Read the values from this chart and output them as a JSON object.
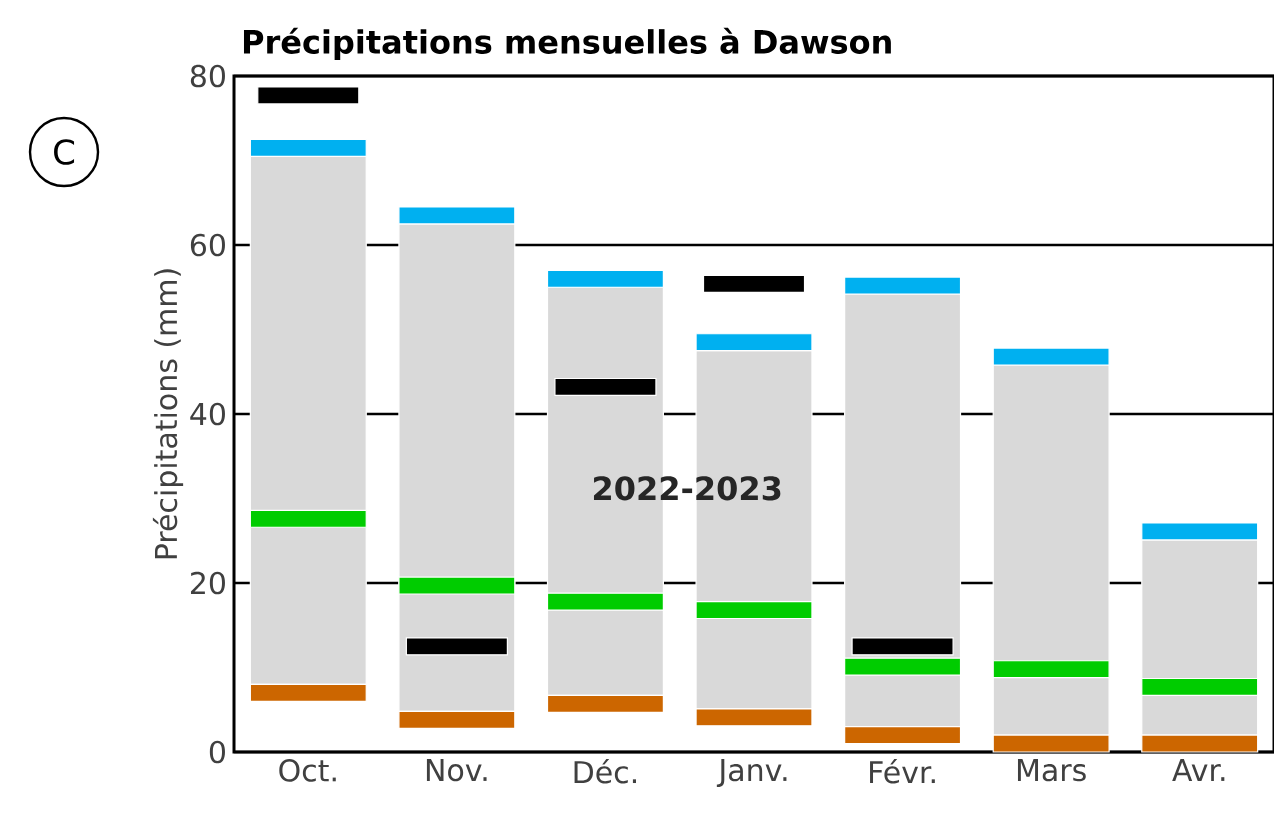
{
  "chart_data": {
    "type": "bar",
    "title": "Précipitations mensuelles à Dawson",
    "ylabel": "Précipitations (mm)",
    "categories": [
      "Oct.",
      "Nov.",
      "Déc.",
      "Janv.",
      "Févr.",
      "Mars",
      "Avr."
    ],
    "annotations": [
      "C"
    ],
    "ylim": [
      0,
      80
    ],
    "yticks": [
      0,
      20,
      40,
      60,
      80
    ],
    "grid": "y",
    "series": [
      {
        "type": "bar",
        "color": "#d9d9d9",
        "base": [
          8,
          4.8,
          6.7,
          5.1,
          3,
          2,
          2
        ],
        "values": [
          62.5,
          57.7,
          48.3,
          42.4,
          51.2,
          43.8,
          23.1
        ]
      },
      {
        "color": "#cc6600",
        "base": [
          6,
          2.8,
          4.7,
          3.1,
          1,
          0,
          0
        ],
        "values": [
          2,
          2,
          2,
          2,
          2,
          2,
          2
        ]
      },
      {
        "color": "#00cc00",
        "base": [
          26.6,
          18.7,
          16.8,
          15.8,
          9.1,
          8.8,
          6.7
        ],
        "values": [
          2,
          2,
          2,
          2,
          2,
          2,
          2
        ]
      },
      {
        "color": "#00b0f0",
        "base": [
          70.5,
          62.5,
          55,
          47.5,
          54.2,
          45.8,
          25.1
        ],
        "values": [
          2,
          2,
          2,
          2,
          2,
          2,
          2
        ]
      },
      {
        "name": "2022-2023",
        "color": "#000000",
        "base": [
          76.7,
          11.5,
          42.2,
          54.4,
          11.5,
          null,
          null
        ],
        "values": [
          2,
          2,
          2,
          2,
          2,
          null,
          null
        ]
      }
    ]
  }
}
